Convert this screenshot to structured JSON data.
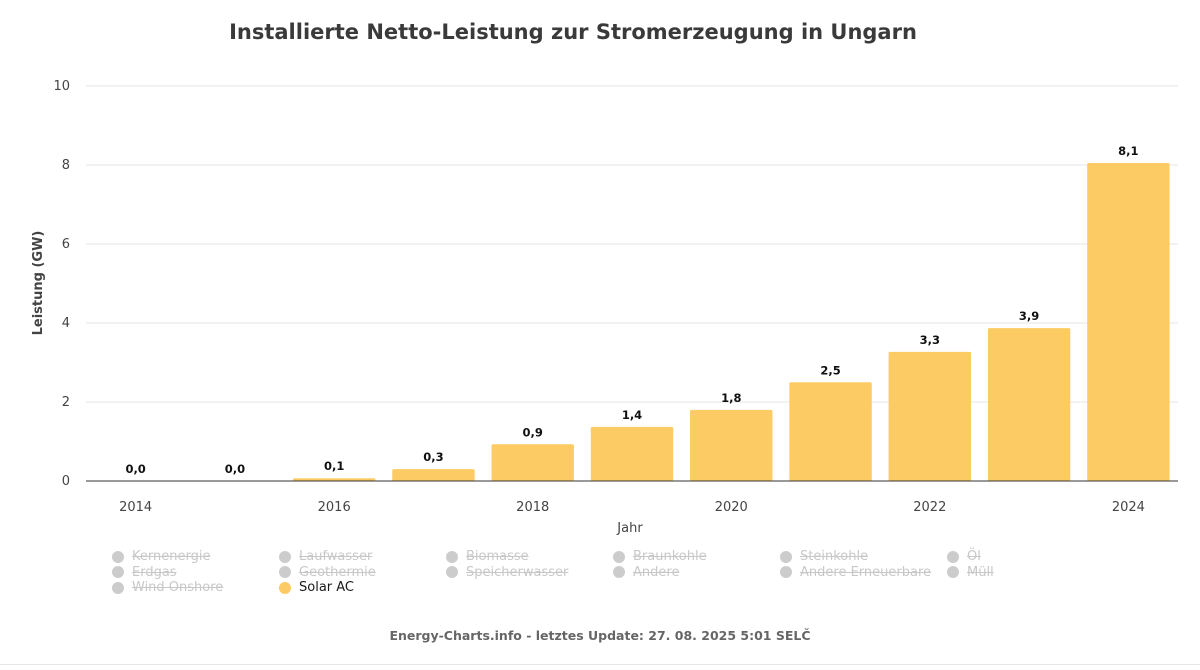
{
  "chart_data": {
    "type": "bar",
    "title": "Installierte Netto-Leistung zur Stromerzeugung in Ungarn",
    "xlabel": "Jahr",
    "ylabel": "Leistung (GW)",
    "ylim": [
      0,
      10
    ],
    "yticks": [
      "0",
      "2",
      "4",
      "6",
      "8",
      "10"
    ],
    "grid": true,
    "categories": [
      "2014",
      "2015",
      "2016",
      "2017",
      "2018",
      "2019",
      "2020",
      "2021",
      "2022",
      "2023",
      "2024"
    ],
    "xtick_labels": [
      "2014",
      "",
      "2016",
      "",
      "2018",
      "",
      "2020",
      "",
      "2022",
      "",
      "2024"
    ],
    "series": [
      {
        "name": "Solar AC",
        "color": "#fdcb64",
        "values": [
          0.0,
          0.0,
          0.07,
          0.3,
          0.93,
          1.37,
          1.8,
          2.5,
          3.27,
          3.87,
          8.05
        ],
        "labels": [
          "0,0",
          "0,0",
          "0,1",
          "0,3",
          "0,9",
          "1,4",
          "1,8",
          "2,5",
          "3,3",
          "3,9",
          "8,1"
        ]
      }
    ]
  },
  "legend": {
    "items": [
      {
        "label": "Kernenergie",
        "visible": false
      },
      {
        "label": "Laufwasser",
        "visible": false
      },
      {
        "label": "Biomasse",
        "visible": false
      },
      {
        "label": "Braunkohle",
        "visible": false
      },
      {
        "label": "Steinkohle",
        "visible": false
      },
      {
        "label": "Öl",
        "visible": false
      },
      {
        "label": "Erdgas",
        "visible": false
      },
      {
        "label": "Geothermie",
        "visible": false
      },
      {
        "label": "Speicherwasser",
        "visible": false
      },
      {
        "label": "Andere",
        "visible": false
      },
      {
        "label": "Andere Erneuerbare",
        "visible": false
      },
      {
        "label": "Müll",
        "visible": false
      },
      {
        "label": "Wind Onshore",
        "visible": false
      },
      {
        "label": "Solar AC",
        "visible": true
      }
    ],
    "hidden_color": "#cccccc"
  },
  "footer": {
    "credit": "Energy-Charts.info - letztes Update: 27. 08. 2025 5:01 SELČ"
  }
}
